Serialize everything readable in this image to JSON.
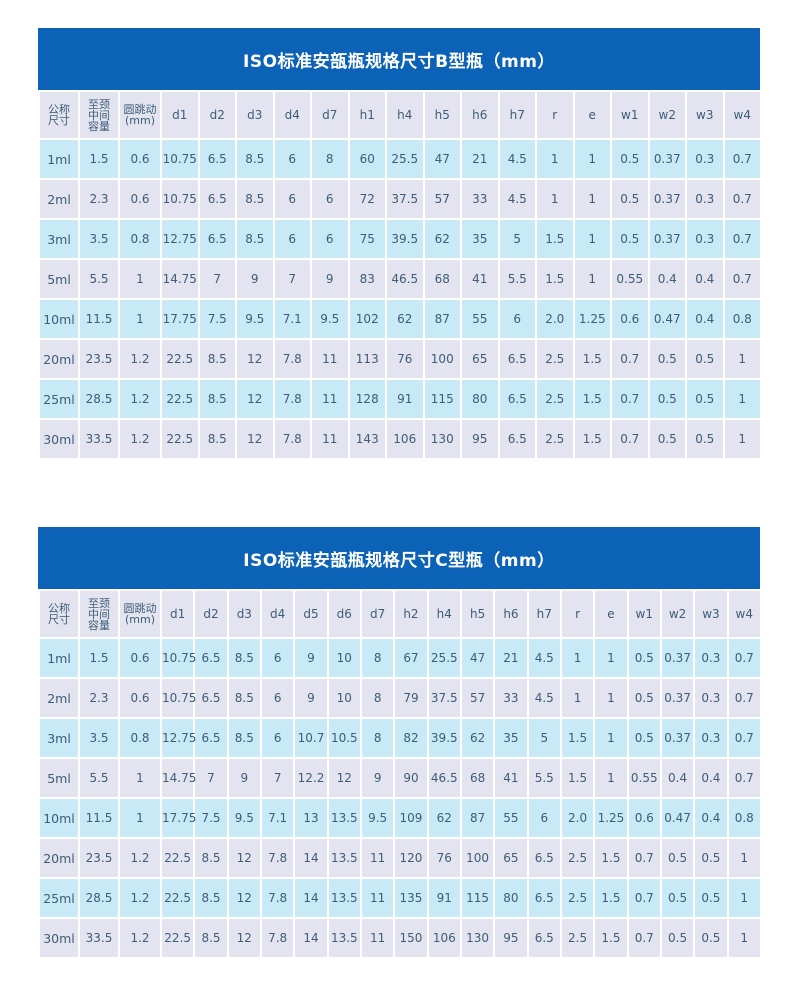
{
  "tables": [
    {
      "title": "ISO标准安瓿瓶规格尺寸B型瓶（mm）",
      "headers": [
        "公称\n尺寸",
        "至颈\n中间\n容量",
        "圆跳动\n(mm)",
        "d1",
        "d2",
        "d3",
        "d4",
        "d7",
        "h1",
        "h4",
        "h5",
        "h6",
        "h7",
        "r",
        "e",
        "w1",
        "w2",
        "w3",
        "w4"
      ],
      "rows": [
        [
          "1ml",
          "1.5",
          "0.6",
          "10.75",
          "6.5",
          "8.5",
          "6",
          "8",
          "60",
          "25.5",
          "47",
          "21",
          "4.5",
          "1",
          "1",
          "0.5",
          "0.37",
          "0.3",
          "0.7"
        ],
        [
          "2ml",
          "2.3",
          "0.6",
          "10.75",
          "6.5",
          "8.5",
          "6",
          "6",
          "72",
          "37.5",
          "57",
          "33",
          "4.5",
          "1",
          "1",
          "0.5",
          "0.37",
          "0.3",
          "0.7"
        ],
        [
          "3ml",
          "3.5",
          "0.8",
          "12.75",
          "6.5",
          "8.5",
          "6",
          "6",
          "75",
          "39.5",
          "62",
          "35",
          "5",
          "1.5",
          "1",
          "0.5",
          "0.37",
          "0.3",
          "0.7"
        ],
        [
          "5ml",
          "5.5",
          "1",
          "14.75",
          "7",
          "9",
          "7",
          "9",
          "83",
          "46.5",
          "68",
          "41",
          "5.5",
          "1.5",
          "1",
          "0.55",
          "0.4",
          "0.4",
          "0.7"
        ],
        [
          "10ml",
          "11.5",
          "1",
          "17.75",
          "7.5",
          "9.5",
          "7.1",
          "9.5",
          "102",
          "62",
          "87",
          "55",
          "6",
          "2.0",
          "1.25",
          "0.6",
          "0.47",
          "0.4",
          "0.8"
        ],
        [
          "20ml",
          "23.5",
          "1.2",
          "22.5",
          "8.5",
          "12",
          "7.8",
          "11",
          "113",
          "76",
          "100",
          "65",
          "6.5",
          "2.5",
          "1.5",
          "0.7",
          "0.5",
          "0.5",
          "1"
        ],
        [
          "25ml",
          "28.5",
          "1.2",
          "22.5",
          "8.5",
          "12",
          "7.8",
          "11",
          "128",
          "91",
          "115",
          "80",
          "6.5",
          "2.5",
          "1.5",
          "0.7",
          "0.5",
          "0.5",
          "1"
        ],
        [
          "30ml",
          "33.5",
          "1.2",
          "22.5",
          "8.5",
          "12",
          "7.8",
          "11",
          "143",
          "106",
          "130",
          "95",
          "6.5",
          "2.5",
          "1.5",
          "0.7",
          "0.5",
          "0.5",
          "1"
        ]
      ]
    },
    {
      "title": "ISO标准安瓿瓶规格尺寸C型瓶（mm）",
      "headers": [
        "公称\n尺寸",
        "至颈\n中间\n容量",
        "圆跳动\n(mm)",
        "d1",
        "d2",
        "d3",
        "d4",
        "d5",
        "d6",
        "d7",
        "h2",
        "h4",
        "h5",
        "h6",
        "h7",
        "r",
        "e",
        "w1",
        "w2",
        "w3",
        "w4"
      ],
      "rows": [
        [
          "1ml",
          "1.5",
          "0.6",
          "10.75",
          "6.5",
          "8.5",
          "6",
          "9",
          "10",
          "8",
          "67",
          "25.5",
          "47",
          "21",
          "4.5",
          "1",
          "1",
          "0.5",
          "0.37",
          "0.3",
          "0.7"
        ],
        [
          "2ml",
          "2.3",
          "0.6",
          "10.75",
          "6.5",
          "8.5",
          "6",
          "9",
          "10",
          "8",
          "79",
          "37.5",
          "57",
          "33",
          "4.5",
          "1",
          "1",
          "0.5",
          "0.37",
          "0.3",
          "0.7"
        ],
        [
          "3ml",
          "3.5",
          "0.8",
          "12.75",
          "6.5",
          "8.5",
          "6",
          "10.7",
          "10.5",
          "8",
          "82",
          "39.5",
          "62",
          "35",
          "5",
          "1.5",
          "1",
          "0.5",
          "0.37",
          "0.3",
          "0.7"
        ],
        [
          "5ml",
          "5.5",
          "1",
          "14.75",
          "7",
          "9",
          "7",
          "12.2",
          "12",
          "9",
          "90",
          "46.5",
          "68",
          "41",
          "5.5",
          "1.5",
          "1",
          "0.55",
          "0.4",
          "0.4",
          "0.7"
        ],
        [
          "10ml",
          "11.5",
          "1",
          "17.75",
          "7.5",
          "9.5",
          "7.1",
          "13",
          "13.5",
          "9.5",
          "109",
          "62",
          "87",
          "55",
          "6",
          "2.0",
          "1.25",
          "0.6",
          "0.47",
          "0.4",
          "0.8"
        ],
        [
          "20ml",
          "23.5",
          "1.2",
          "22.5",
          "8.5",
          "12",
          "7.8",
          "14",
          "13.5",
          "11",
          "120",
          "76",
          "100",
          "65",
          "6.5",
          "2.5",
          "1.5",
          "0.7",
          "0.5",
          "0.5",
          "1"
        ],
        [
          "25ml",
          "28.5",
          "1.2",
          "22.5",
          "8.5",
          "12",
          "7.8",
          "14",
          "13.5",
          "11",
          "135",
          "91",
          "115",
          "80",
          "6.5",
          "2.5",
          "1.5",
          "0.7",
          "0.5",
          "0.5",
          "1"
        ],
        [
          "30ml",
          "33.5",
          "1.2",
          "22.5",
          "8.5",
          "12",
          "7.8",
          "14",
          "13.5",
          "11",
          "150",
          "106",
          "130",
          "95",
          "6.5",
          "2.5",
          "1.5",
          "0.7",
          "0.5",
          "0.5",
          "1"
        ]
      ]
    }
  ],
  "colors": {
    "title_bar": "#0b62b6",
    "header": "#e3e4f0",
    "row_blue": "#c8e9f6",
    "row_grey": "#e3e4ef",
    "text": "#3d5d7a"
  }
}
